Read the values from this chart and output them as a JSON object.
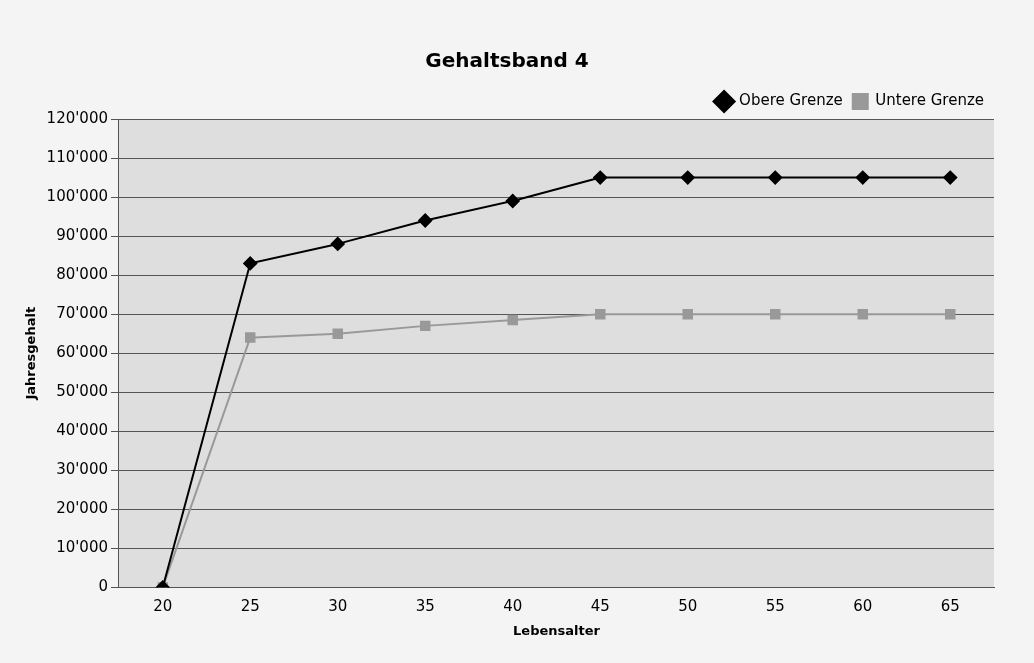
{
  "chart_data": {
    "type": "line",
    "title": "Gehaltsband 4",
    "xlabel": "Lebensalter",
    "ylabel": "Jahresgehalt",
    "categories": [
      "20",
      "25",
      "30",
      "35",
      "40",
      "45",
      "50",
      "55",
      "60",
      "65"
    ],
    "series": [
      {
        "name": "Obere Grenze",
        "color": "#000000",
        "marker": "diamond",
        "values": [
          0,
          83000,
          88000,
          94000,
          99000,
          105000,
          105000,
          105000,
          105000,
          105000
        ]
      },
      {
        "name": "Untere Grenze",
        "color": "#999999",
        "marker": "square",
        "values": [
          0,
          64000,
          65000,
          67000,
          68500,
          70000,
          70000,
          70000,
          70000,
          70000
        ]
      }
    ],
    "ylim": [
      0,
      120000
    ],
    "yticks": [
      0,
      {
        "value": 10000,
        "label": "10'000"
      },
      {
        "value": 20000,
        "label": "20'000"
      },
      {
        "value": 30000,
        "label": "30'000"
      },
      {
        "value": 40000,
        "label": "40'000"
      },
      {
        "value": 50000,
        "label": "50'000"
      },
      {
        "value": 60000,
        "label": "60'000"
      },
      {
        "value": 70000,
        "label": "70'000"
      },
      {
        "value": 80000,
        "label": "80'000"
      },
      {
        "value": 90000,
        "label": "90'000"
      },
      {
        "value": 100000,
        "label": "100'000"
      },
      {
        "value": 110000,
        "label": "110'000"
      },
      {
        "value": 120000,
        "label": "120'000"
      }
    ],
    "grid": "y",
    "legend": "top right"
  }
}
